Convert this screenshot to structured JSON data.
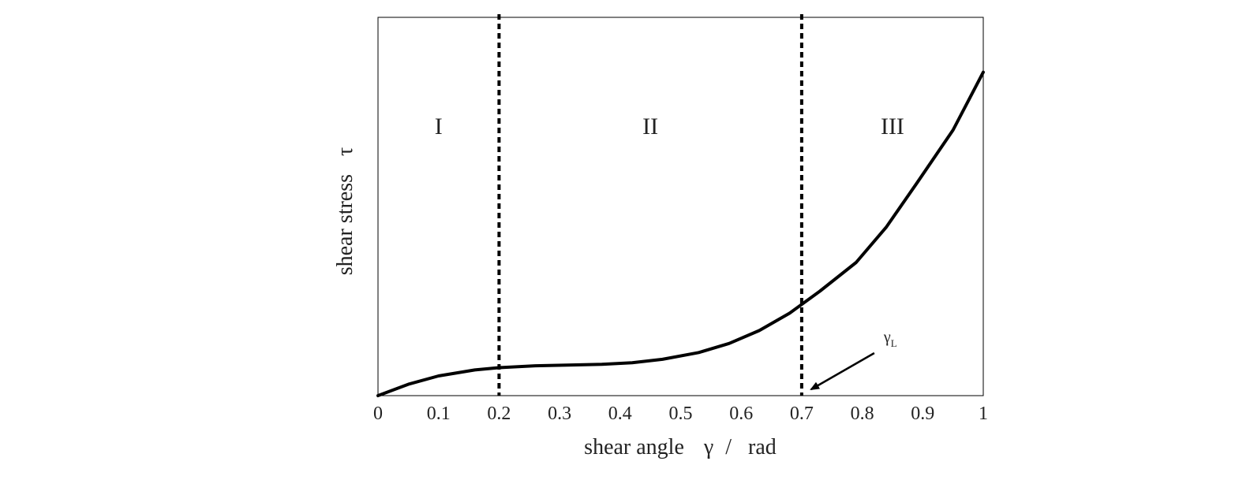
{
  "chart_data": {
    "type": "line",
    "xlabel": {
      "prefix": "shear angle",
      "symbol": "γ",
      "separator": "/",
      "unit": "rad"
    },
    "ylabel": {
      "text": "shear stress",
      "symbol": "τ"
    },
    "xlim": [
      0,
      1
    ],
    "ylim": [
      0,
      1
    ],
    "y_tick_labels_shown": false,
    "x_ticks": [
      0,
      0.1,
      0.2,
      0.3,
      0.4,
      0.5,
      0.6,
      0.7,
      0.8,
      0.9,
      1
    ],
    "x_tick_labels": [
      "0",
      "0.1",
      "0.2",
      "0.3",
      "0.4",
      "0.5",
      "0.6",
      "0.7",
      "0.8",
      "0.9",
      "1"
    ],
    "grid": false,
    "series": [
      {
        "x": [
          0,
          0.05,
          0.1,
          0.16,
          0.2,
          0.26,
          0.32,
          0.37,
          0.42,
          0.47,
          0.53,
          0.58,
          0.63,
          0.68,
          0.73,
          0.79,
          0.84,
          0.89,
          0.95,
          1.0
        ],
        "y": [
          0,
          0.03,
          0.052,
          0.068,
          0.074,
          0.079,
          0.081,
          0.083,
          0.087,
          0.096,
          0.114,
          0.138,
          0.172,
          0.218,
          0.276,
          0.352,
          0.446,
          0.561,
          0.702,
          0.855
        ],
        "color": "#000000"
      }
    ],
    "vlines": [
      {
        "x": 0.2,
        "style": "dashed"
      },
      {
        "x": 0.7,
        "style": "dashed"
      }
    ],
    "regions": [
      {
        "label": "I",
        "x": 0.1
      },
      {
        "label": "II",
        "x": 0.45
      },
      {
        "label": "III",
        "x": 0.85
      }
    ],
    "annotations": [
      {
        "symbol": "γ",
        "subscript": "L",
        "points_to_x": 0.7
      }
    ]
  }
}
